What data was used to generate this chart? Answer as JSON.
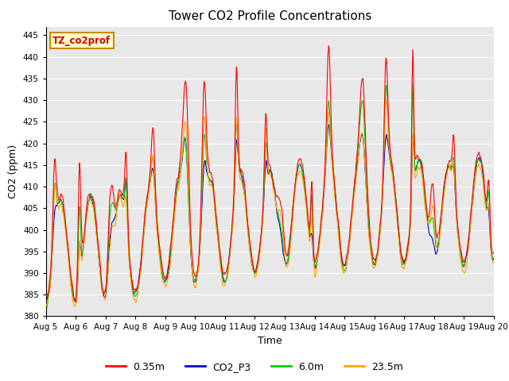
{
  "title": "Tower CO2 Profile Concentrations",
  "xlabel": "Time",
  "ylabel": "CO2 (ppm)",
  "ylim": [
    380,
    447
  ],
  "yticks": [
    380,
    385,
    390,
    395,
    400,
    405,
    410,
    415,
    420,
    425,
    430,
    435,
    440,
    445
  ],
  "series_labels": [
    "0.35m",
    "CO2_P3",
    "6.0m",
    "23.5m"
  ],
  "series_colors": [
    "#ff0000",
    "#0000cc",
    "#00cc00",
    "#ffa500"
  ],
  "annotation_text": "TZ_co2prof",
  "annotation_bbox_facecolor": "#ffffcc",
  "annotation_bbox_edgecolor": "#cc8800",
  "plot_bg_color": "#e8e8e8",
  "fig_bg_color": "#ffffff",
  "grid_color": "#ffffff",
  "num_days": 15,
  "base_co2": 400,
  "seed": 42,
  "line_width": 0.8,
  "title_fontsize": 11,
  "axis_label_fontsize": 9,
  "tick_fontsize": 7.5,
  "legend_fontsize": 9
}
